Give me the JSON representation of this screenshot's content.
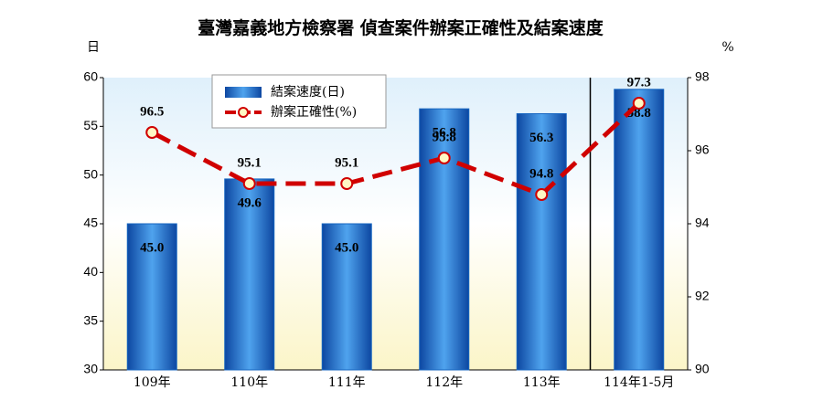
{
  "chart_data": {
    "type": "bar",
    "title": "臺灣嘉義地方檢察署 偵查案件辦案正確性及結案速度",
    "y_label": "日",
    "y2_label": "%",
    "categories": [
      "109年",
      "110年",
      "111年",
      "112年",
      "113年",
      "114年1-5月"
    ],
    "series": [
      {
        "name": "結案速度(日)",
        "type": "bar",
        "color": "#1565c0",
        "values": [
          45.0,
          49.6,
          45.0,
          56.8,
          56.3,
          58.8
        ],
        "value_labels": [
          "45.0",
          "49.6",
          "45.0",
          "56.8",
          "56.3",
          "58.8"
        ]
      },
      {
        "name": "辦案正確性(%)",
        "type": "line",
        "axis": "y2",
        "color": "#d00000",
        "values": [
          96.5,
          95.1,
          95.1,
          95.8,
          94.8,
          97.3
        ]
      }
    ],
    "ylim": [
      30,
      60
    ],
    "yticks": [
      30,
      35,
      40,
      45,
      50,
      55,
      60
    ],
    "y2lim": [
      90,
      98
    ],
    "y2ticks": [
      90,
      92,
      94,
      96,
      98
    ]
  }
}
